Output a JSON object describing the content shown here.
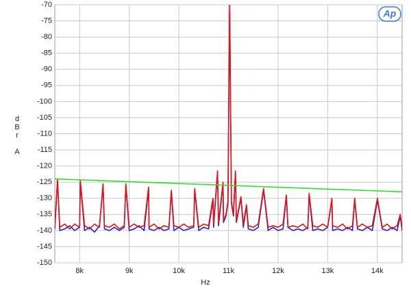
{
  "chart_data": {
    "type": "line",
    "logo": "Ap",
    "xlabel": "Hz",
    "ylabel": "dBr A",
    "xlim": [
      7500,
      14500
    ],
    "ylim": [
      -150,
      -70
    ],
    "xticks": [
      {
        "value": 8000,
        "label": "8k"
      },
      {
        "value": 9000,
        "label": "9k"
      },
      {
        "value": 10000,
        "label": "10k"
      },
      {
        "value": 11000,
        "label": "11k"
      },
      {
        "value": 12000,
        "label": "12k"
      },
      {
        "value": 13000,
        "label": "13k"
      },
      {
        "value": 14000,
        "label": "14k"
      }
    ],
    "yticks": [
      -70,
      -75,
      -80,
      -85,
      -90,
      -95,
      -100,
      -105,
      -110,
      -115,
      -120,
      -125,
      -130,
      -135,
      -140,
      -145,
      -150
    ],
    "grid": true,
    "x": [
      7500,
      7555,
      7600,
      7700,
      7800,
      7900,
      8000,
      8014,
      8100,
      8200,
      8300,
      8400,
      8473,
      8500,
      8600,
      8700,
      8800,
      8900,
      8932,
      9000,
      9100,
      9200,
      9300,
      9391,
      9400,
      9500,
      9600,
      9700,
      9800,
      9850,
      9900,
      10000,
      10100,
      10200,
      10300,
      10320,
      10400,
      10500,
      10600,
      10688,
      10700,
      10780,
      10800,
      10891,
      10900,
      10950,
      10990,
      11025,
      11060,
      11100,
      11141,
      11160,
      11252,
      11300,
      11363,
      11400,
      11500,
      11600,
      11708,
      11800,
      11900,
      12000,
      12100,
      12167,
      12200,
      12300,
      12400,
      12500,
      12600,
      12626,
      12700,
      12800,
      12900,
      13000,
      13085,
      13100,
      13200,
      13300,
      13400,
      13500,
      13544,
      13600,
      13700,
      13800,
      13900,
      14003,
      14100,
      14200,
      14300,
      14400,
      14462,
      14500
    ],
    "series": [
      {
        "color": "#2020d0",
        "values": [
          -139.5,
          -124.5,
          -140,
          -139.5,
          -138.5,
          -140,
          -139,
          -125,
          -140,
          -139,
          -140.5,
          -138.5,
          -126,
          -139.5,
          -140,
          -139,
          -140,
          -139,
          -126,
          -140,
          -139.5,
          -138.5,
          -140,
          -127,
          -139.5,
          -140,
          -139,
          -140,
          -139.5,
          -128,
          -140,
          -139,
          -140,
          -139.5,
          -139,
          -127.5,
          -140,
          -139,
          -139.5,
          -130.5,
          -139,
          -122,
          -138.5,
          -125.5,
          -137.5,
          -135.5,
          -131.5,
          -70,
          -131.5,
          -135.5,
          -122,
          -137.5,
          -130,
          -139,
          -132.5,
          -139.5,
          -140,
          -139,
          -127.5,
          -140,
          -139,
          -140,
          -139.5,
          -129.5,
          -139,
          -140,
          -139.5,
          -140,
          -139,
          -129,
          -140,
          -139.5,
          -140,
          -139,
          -130.5,
          -140,
          -139.5,
          -140,
          -139,
          -140,
          -130.5,
          -139.5,
          -140,
          -139,
          -140,
          -130.5,
          -139.5,
          -140,
          -139,
          -140,
          -135.5,
          -140
        ]
      },
      {
        "color": "#e81010",
        "values": [
          -138.5,
          -124,
          -139,
          -138,
          -139.5,
          -138,
          -139,
          -124.5,
          -138.5,
          -139.5,
          -138,
          -139,
          -125.5,
          -138.5,
          -139,
          -138,
          -139.5,
          -138.5,
          -125.5,
          -139,
          -138,
          -139,
          -138.5,
          -126.5,
          -139,
          -138,
          -139.5,
          -138.5,
          -139,
          -127.5,
          -138.5,
          -139,
          -138,
          -139,
          -138.5,
          -127,
          -139,
          -138,
          -138.5,
          -130,
          -138,
          -121.5,
          -137.5,
          -125,
          -137,
          -135,
          -131,
          -70,
          -131,
          -135,
          -121.5,
          -137,
          -129.5,
          -138,
          -132,
          -138.5,
          -139,
          -138,
          -127,
          -139,
          -138.5,
          -139,
          -138,
          -129,
          -139,
          -138.5,
          -139,
          -138,
          -139.5,
          -128.5,
          -138.5,
          -139,
          -138,
          -139,
          -130,
          -138.5,
          -139,
          -138,
          -139.5,
          -138.5,
          -130,
          -139,
          -138,
          -139,
          -138.5,
          -130,
          -139,
          -138,
          -139.5,
          -138.5,
          -135,
          -139
        ]
      },
      {
        "color": "#30e030",
        "x": [
          7500,
          14500
        ],
        "values": [
          -124,
          -128
        ]
      }
    ]
  }
}
